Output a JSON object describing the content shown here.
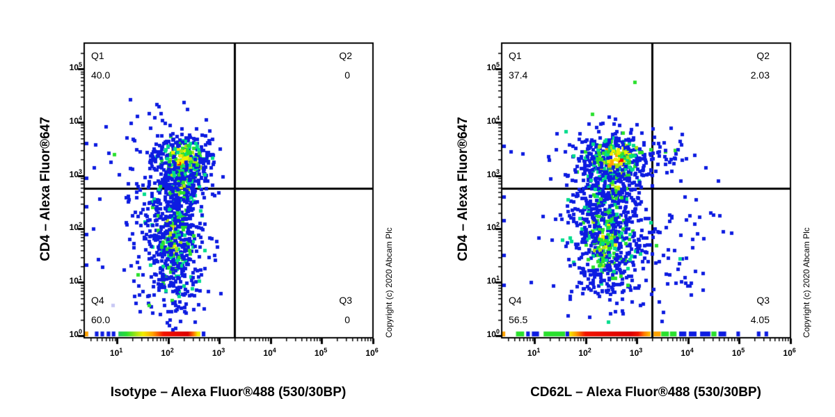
{
  "figure": {
    "background": "#ffffff",
    "axis_color": "#000000",
    "watermark": "Copyright (c) 2020 Abcam Plc"
  },
  "palette": {
    "blue": "#0d1ce1",
    "teal": "#00dc8c",
    "green": "#2ae02e",
    "lime": "#aae614",
    "yellow": "#f2ee00",
    "orange": "#ffa200",
    "red": "#f21400",
    "deep_red": "#dc0000",
    "lavender": "#c8c8f4"
  },
  "chart_data": [
    {
      "type": "scatter",
      "subtype": "flow-cytometry-pseudocolor-density",
      "xlabel": "Isotype – Alexa Fluor®488 (530/30BP)",
      "ylabel": "CD4 – Alexa Fluor®647",
      "watermark": "Copyright (c) 2020 Abcam Plc",
      "x_axis": {
        "scale": "log",
        "base": "10",
        "exponents": [
          1,
          2,
          3,
          4,
          5,
          6
        ],
        "range_log": [
          0.37,
          6.0
        ]
      },
      "y_axis": {
        "scale": "log",
        "base": "10",
        "exponents": [
          0,
          1,
          2,
          3,
          4,
          5
        ],
        "range_log": [
          0.0,
          5.5
        ]
      },
      "gates_log": {
        "x": 3.3,
        "y": 2.76
      },
      "quadrants": {
        "q1": {
          "label": "Q1",
          "value": "40.0"
        },
        "q2": {
          "label": "Q2",
          "value": "0"
        },
        "q3": {
          "label": "Q3",
          "value": "0"
        },
        "q4": {
          "label": "Q4",
          "value": "60.0"
        }
      },
      "populations": [
        {
          "name": "cd4-positive-cluster",
          "cx": 2.3,
          "cy": 3.28,
          "sx": 0.3,
          "sy": 0.26,
          "n": 400,
          "profile": "hot_core",
          "seed": 11,
          "max_logx": 3.26
        },
        {
          "name": "bridge",
          "cx": 2.28,
          "cy": 2.78,
          "sx": 0.2,
          "sy": 0.22,
          "n": 90,
          "profile": "green_core",
          "seed": 12,
          "max_logx": 3.26
        },
        {
          "name": "cd4-negative-cluster",
          "cx": 2.12,
          "cy": 1.8,
          "sx": 0.27,
          "sy": 0.6,
          "n": 560,
          "profile": "green_core",
          "seed": 13,
          "max_logx": 3.26
        },
        {
          "name": "blue-halo",
          "cx": 1.95,
          "cy": 2.7,
          "sx": 0.55,
          "sy": 0.85,
          "n": 120,
          "profile": "blue_only",
          "seed": 14,
          "max_logx": 3.26
        },
        {
          "name": "low-sparse",
          "cx": 2.05,
          "cy": 0.85,
          "sx": 0.35,
          "sy": 0.45,
          "n": 60,
          "profile": "blue_only",
          "seed": 15,
          "max_logx": 3.26
        }
      ],
      "outliers_log": [
        [
          0.59,
          3.58
        ],
        [
          0.85,
          3.42
        ],
        [
          1.3,
          3.12
        ],
        [
          0.55,
          2.0
        ],
        [
          0.72,
          1.28
        ]
      ],
      "edge_clamp_ylog": [
        3.6,
        2.95,
        2.42,
        1.9,
        1.32
      ],
      "special_points": [
        {
          "x": 0.93,
          "y": 0.57,
          "color": "#c8c8f4"
        }
      ],
      "baseline_strip": [
        {
          "kind": "solid",
          "x0": 0.37,
          "x1": 0.44,
          "color": "#ffa200"
        },
        {
          "kind": "solid",
          "x0": 0.57,
          "x1": 0.64,
          "color": "#0d1ce1"
        },
        {
          "kind": "solid",
          "x0": 0.68,
          "x1": 0.75,
          "color": "#0d1ce1"
        },
        {
          "kind": "solid",
          "x0": 0.8,
          "x1": 0.87,
          "color": "#0d1ce1"
        },
        {
          "kind": "solid",
          "x0": 0.9,
          "x1": 0.97,
          "color": "#0d1ce1"
        },
        {
          "kind": "gradient",
          "x0": 1.03,
          "x1": 2.63,
          "stops": [
            [
              0,
              "#22c85e"
            ],
            [
              0.1,
              "#2ae02e"
            ],
            [
              0.22,
              "#aae614"
            ],
            [
              0.3,
              "#f2ee00"
            ],
            [
              0.42,
              "#ffa200"
            ],
            [
              0.55,
              "#f21400"
            ],
            [
              0.85,
              "#dc0000"
            ],
            [
              0.92,
              "#ff7a00"
            ],
            [
              0.97,
              "#f2ee00"
            ],
            [
              1,
              "#f2ee00"
            ]
          ]
        },
        {
          "kind": "solid",
          "x0": 2.66,
          "x1": 2.73,
          "color": "#0d1ce1"
        }
      ]
    },
    {
      "type": "scatter",
      "subtype": "flow-cytometry-pseudocolor-density",
      "xlabel": "CD62L – Alexa Fluor®488 (530/30BP)",
      "ylabel": "CD4 – Alexa Fluor®647",
      "watermark": "Copyright (c) 2020 Abcam Plc",
      "x_axis": {
        "scale": "log",
        "base": "10",
        "exponents": [
          1,
          2,
          3,
          4,
          5,
          6
        ],
        "range_log": [
          0.37,
          6.0
        ]
      },
      "y_axis": {
        "scale": "log",
        "base": "10",
        "exponents": [
          0,
          1,
          2,
          3,
          4,
          5
        ],
        "range_log": [
          0.0,
          5.5
        ]
      },
      "gates_log": {
        "x": 3.3,
        "y": 2.76
      },
      "quadrants": {
        "q1": {
          "label": "Q1",
          "value": "37.4"
        },
        "q2": {
          "label": "Q2",
          "value": "2.03"
        },
        "q3": {
          "label": "Q3",
          "value": "4.05"
        },
        "q4": {
          "label": "Q4",
          "value": "56.5"
        }
      },
      "populations": [
        {
          "name": "cd4-positive-cluster",
          "cx": 2.55,
          "cy": 3.3,
          "sx": 0.38,
          "sy": 0.25,
          "n": 420,
          "profile": "hot_core",
          "seed": 21
        },
        {
          "name": "cd4pos-cd62l-high",
          "cx": 3.52,
          "cy": 3.28,
          "sx": 0.28,
          "sy": 0.22,
          "n": 34,
          "profile": "blue_only",
          "seed": 22
        },
        {
          "name": "bridge",
          "cx": 2.55,
          "cy": 2.78,
          "sx": 0.25,
          "sy": 0.22,
          "n": 90,
          "profile": "green_core",
          "seed": 23
        },
        {
          "name": "cd4-negative-cluster",
          "cx": 2.42,
          "cy": 1.8,
          "sx": 0.36,
          "sy": 0.58,
          "n": 620,
          "profile": "green_core",
          "seed": 24
        },
        {
          "name": "cd62l-high-cd4neg",
          "cx": 3.68,
          "cy": 1.6,
          "sx": 0.42,
          "sy": 0.58,
          "n": 60,
          "profile": "blue_only",
          "seed": 25
        },
        {
          "name": "blue-halo",
          "cx": 2.45,
          "cy": 2.5,
          "sx": 0.6,
          "sy": 0.9,
          "n": 80,
          "profile": "blue_only",
          "seed": 26
        }
      ],
      "outliers_log": [
        [
          0.55,
          3.45
        ],
        [
          0.78,
          3.4
        ],
        [
          1.28,
          3.35
        ],
        [
          4.35,
          3.15
        ],
        [
          4.6,
          2.9
        ],
        [
          4.45,
          2.3
        ],
        [
          4.7,
          1.95
        ],
        [
          4.3,
          0.85
        ],
        [
          3.95,
          2.6
        ],
        [
          4.15,
          1.2
        ]
      ],
      "edge_clamp_ylog": [
        3.55,
        2.6,
        2.15,
        1.5,
        0.95
      ],
      "special_points": [],
      "baseline_strip": [
        {
          "kind": "solid",
          "x0": 0.37,
          "x1": 0.43,
          "color": "#ffa200"
        },
        {
          "kind": "solid",
          "x0": 0.64,
          "x1": 0.8,
          "color": "#2ae02e"
        },
        {
          "kind": "solid",
          "x0": 0.84,
          "x1": 0.91,
          "color": "#0d1ce1"
        },
        {
          "kind": "solid",
          "x0": 0.95,
          "x1": 1.09,
          "color": "#0d1ce1"
        },
        {
          "kind": "solid",
          "x0": 1.18,
          "x1": 1.6,
          "color": "#2ae02e"
        },
        {
          "kind": "solid",
          "x0": 1.61,
          "x1": 1.68,
          "color": "#0d1ce1"
        },
        {
          "kind": "gradient",
          "x0": 1.68,
          "x1": 3.27,
          "stops": [
            [
              0,
              "#f2ee00"
            ],
            [
              0.08,
              "#ffa200"
            ],
            [
              0.2,
              "#f21400"
            ],
            [
              0.75,
              "#dc0000"
            ],
            [
              0.85,
              "#f21400"
            ],
            [
              0.92,
              "#ff7a00"
            ],
            [
              1,
              "#ffc400"
            ]
          ]
        },
        {
          "kind": "solid",
          "x0": 3.33,
          "x1": 3.47,
          "color": "#ffa200"
        },
        {
          "kind": "solid",
          "x0": 3.48,
          "x1": 3.63,
          "color": "#2ae02e"
        },
        {
          "kind": "solid",
          "x0": 3.65,
          "x1": 3.78,
          "color": "#2ae02e"
        },
        {
          "kind": "solid",
          "x0": 3.83,
          "x1": 3.97,
          "color": "#0d1ce1"
        },
        {
          "kind": "solid",
          "x0": 4.02,
          "x1": 4.17,
          "color": "#0d1ce1"
        },
        {
          "kind": "solid",
          "x0": 4.24,
          "x1": 4.44,
          "color": "#0d1ce1"
        },
        {
          "kind": "solid",
          "x0": 4.46,
          "x1": 4.56,
          "color": "#2ae02e"
        },
        {
          "kind": "solid",
          "x0": 4.6,
          "x1": 4.75,
          "color": "#0d1ce1"
        },
        {
          "kind": "solid",
          "x0": 4.95,
          "x1": 5.02,
          "color": "#0d1ce1"
        },
        {
          "kind": "solid",
          "x0": 5.35,
          "x1": 5.42,
          "color": "#0d1ce1"
        },
        {
          "kind": "solid",
          "x0": 5.5,
          "x1": 5.57,
          "color": "#0d1ce1"
        }
      ]
    }
  ]
}
